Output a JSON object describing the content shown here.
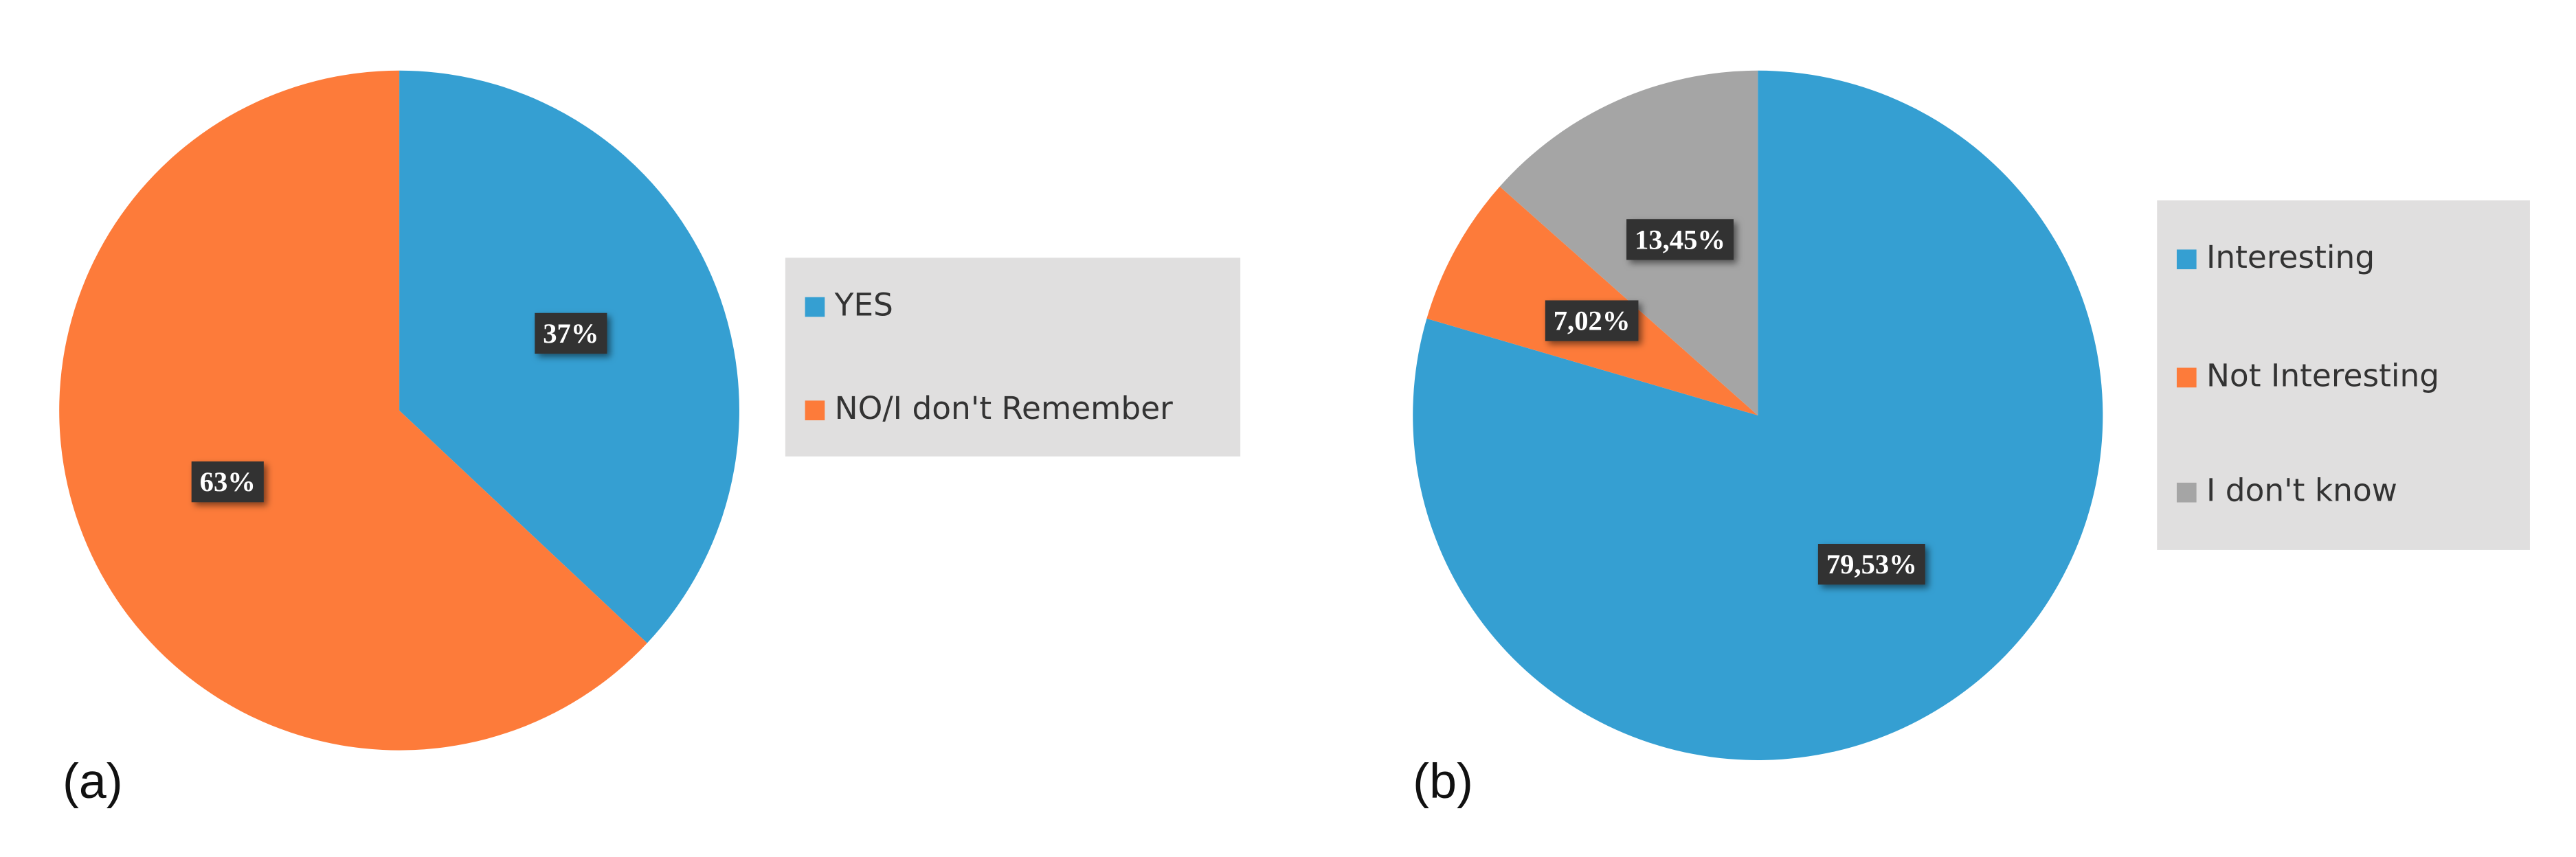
{
  "chart_data": [
    {
      "type": "pie",
      "label": "(a)",
      "categories": [
        "YES",
        "NO/I don't Remember"
      ],
      "values": [
        37,
        63
      ],
      "value_labels": [
        "37%",
        "63%"
      ],
      "colors": [
        "#359fd2",
        "#fd7b3a"
      ]
    },
    {
      "type": "pie",
      "label": "(b)",
      "categories": [
        "Interesting",
        "Not Interesting",
        "I don't know"
      ],
      "values": [
        79.53,
        7.02,
        13.45
      ],
      "value_labels": [
        "79,53%",
        "7,02%",
        "13,45%"
      ],
      "colors": [
        "#359fd2",
        "#fd7b3a",
        "#a5a5a5"
      ]
    }
  ]
}
